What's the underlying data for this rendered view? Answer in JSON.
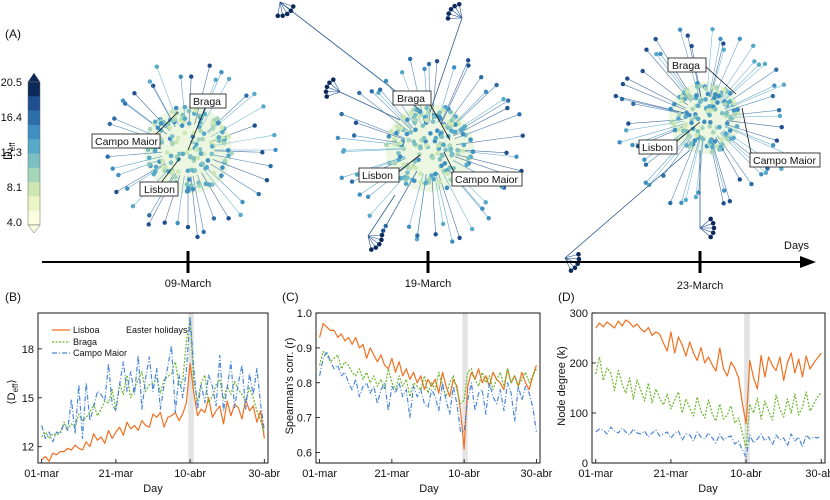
{
  "panel_labels": {
    "a": "(A)",
    "b": "(B)",
    "c": "(C)",
    "d": "(D)"
  },
  "colorbar": {
    "label_main": "D",
    "label_sub": "eff",
    "ticks": [
      "20.5",
      "16.4",
      "12.3",
      "8.1",
      "4.0"
    ],
    "colors": [
      "#0b2a5b",
      "#1f4f8f",
      "#2c6ea8",
      "#3f8fc2",
      "#56a9c9",
      "#7dc0c2",
      "#a6d5b9",
      "#cde7b3",
      "#ecf5c5",
      "#fbfde0"
    ]
  },
  "timeline": {
    "axis_label": "Days",
    "dates": [
      "09-March",
      "19-March",
      "23-March"
    ]
  },
  "networks": [
    {
      "date": "09-March",
      "labels": [
        "Braga",
        "Campo Maior",
        "Lisbon"
      ]
    },
    {
      "date": "19-March",
      "labels": [
        "Braga",
        "Lisbon",
        "Campo Maior"
      ]
    },
    {
      "date": "23-March",
      "labels": [
        "Braga",
        "Lisbon",
        "Campo Maior"
      ]
    }
  ],
  "series_colors": {
    "Lisboa": "#f07020",
    "Braga": "#6ab52a",
    "Campo Maior": "#4a86d8"
  },
  "chart_data": [
    {
      "type": "line",
      "panel": "(B)",
      "xlabel": "Day",
      "ylabel_main": "⟨D",
      "ylabel_sub": "eff",
      "ylabel_end": "⟩",
      "x_ticks": [
        "01-mar",
        "21-mar",
        "10-abr",
        "30-abr"
      ],
      "x_tick_days": [
        0,
        20,
        40,
        60
      ],
      "xlim": [
        -1,
        61
      ],
      "ylim": [
        11,
        20.2
      ],
      "y_ticks": [
        12,
        15,
        18
      ],
      "annotation": "Easter holidays",
      "shaded_day_range": [
        39.5,
        41
      ],
      "series": [
        {
          "name": "Lisboa",
          "values": [
            11.2,
            11.4,
            11.1,
            11.6,
            11.5,
            11.7,
            11.7,
            11.9,
            11.8,
            12.1,
            11.9,
            11.8,
            12.3,
            12.0,
            12.8,
            12.4,
            12.6,
            12.2,
            13.0,
            12.5,
            12.9,
            13.2,
            12.7,
            13.5,
            13.1,
            13.3,
            13.0,
            13.6,
            13.3,
            13.2,
            14.0,
            13.8,
            14.1,
            13.2,
            13.8,
            13.9,
            14.1,
            13.6,
            14.0,
            14.7,
            17.1,
            15.3,
            13.9,
            14.3,
            14.1,
            15.0,
            13.8,
            14.2,
            14.5,
            13.4,
            14.8,
            13.9,
            14.6,
            14.4,
            13.7,
            14.9,
            14.2,
            14.5,
            13.5,
            14.2,
            12.5
          ]
        },
        {
          "name": "Braga",
          "values": [
            12.6,
            12.9,
            12.5,
            12.8,
            12.7,
            12.9,
            13.5,
            13.1,
            13.4,
            13.2,
            14.0,
            13.6,
            13.8,
            14.1,
            14.6,
            13.9,
            14.3,
            14.8,
            14.7,
            15.5,
            14.3,
            15.9,
            15.2,
            16.4,
            15.0,
            15.6,
            16.1,
            16.6,
            15.4,
            15.8,
            15.9,
            16.2,
            15.3,
            16.1,
            16.3,
            16.5,
            17.2,
            15.8,
            16.0,
            18.5,
            19.8,
            16.0,
            14.8,
            15.9,
            16.4,
            14.7,
            15.1,
            15.8,
            16.1,
            14.9,
            15.7,
            15.2,
            16.0,
            15.5,
            15.2,
            14.8,
            15.6,
            15.0,
            14.2,
            13.6,
            12.8
          ]
        },
        {
          "name": "Campo Maior",
          "values": [
            13.3,
            12.5,
            12.9,
            12.3,
            12.9,
            12.8,
            13.4,
            13.0,
            14.9,
            12.8,
            15.8,
            12.5,
            15.9,
            13.6,
            14.4,
            15.4,
            15.2,
            14.8,
            17.1,
            14.6,
            14.2,
            15.8,
            17.2,
            15.4,
            16.6,
            15.2,
            17.6,
            14.3,
            16.2,
            17.5,
            15.4,
            16.8,
            14.3,
            15.8,
            16.9,
            18.2,
            14.1,
            16.4,
            15.0,
            16.7,
            20.0,
            16.8,
            14.3,
            15.8,
            14.7,
            16.4,
            15.7,
            14.5,
            17.6,
            14.2,
            15.6,
            17.2,
            14.4,
            15.9,
            17.0,
            14.3,
            16.5,
            15.2,
            16.8,
            14.6,
            13.0
          ]
        }
      ]
    },
    {
      "type": "line",
      "panel": "(C)",
      "xlabel": "Day",
      "ylabel": "Spearman's corr. (r)",
      "x_ticks": [
        "01-mar",
        "21-mar",
        "10-abr",
        "30-abr"
      ],
      "x_tick_days": [
        0,
        20,
        40,
        60
      ],
      "xlim": [
        -1,
        61
      ],
      "ylim": [
        0.57,
        1.0
      ],
      "y_ticks": [
        0.6,
        0.7,
        0.8,
        0.9,
        1.0
      ],
      "shaded_day_range": [
        39.5,
        41
      ],
      "series": [
        {
          "name": "Lisboa",
          "values": [
            0.93,
            0.97,
            0.96,
            0.95,
            0.95,
            0.93,
            0.94,
            0.92,
            0.93,
            0.91,
            0.93,
            0.9,
            0.91,
            0.87,
            0.9,
            0.88,
            0.86,
            0.88,
            0.85,
            0.84,
            0.87,
            0.83,
            0.86,
            0.82,
            0.84,
            0.81,
            0.83,
            0.8,
            0.82,
            0.78,
            0.81,
            0.79,
            0.81,
            0.77,
            0.83,
            0.79,
            0.76,
            0.81,
            0.79,
            0.72,
            0.61,
            0.79,
            0.83,
            0.81,
            0.84,
            0.8,
            0.82,
            0.79,
            0.83,
            0.81,
            0.8,
            0.78,
            0.84,
            0.8,
            0.82,
            0.79,
            0.83,
            0.8,
            0.78,
            0.82,
            0.85
          ]
        },
        {
          "name": "Braga",
          "values": [
            0.85,
            0.89,
            0.88,
            0.86,
            0.87,
            0.88,
            0.84,
            0.86,
            0.85,
            0.83,
            0.82,
            0.84,
            0.81,
            0.83,
            0.8,
            0.82,
            0.79,
            0.81,
            0.78,
            0.84,
            0.8,
            0.78,
            0.82,
            0.79,
            0.81,
            0.76,
            0.8,
            0.79,
            0.78,
            0.82,
            0.77,
            0.8,
            0.78,
            0.83,
            0.79,
            0.76,
            0.8,
            0.82,
            0.78,
            0.74,
            0.75,
            0.83,
            0.84,
            0.81,
            0.79,
            0.83,
            0.8,
            0.82,
            0.78,
            0.81,
            0.83,
            0.79,
            0.84,
            0.8,
            0.82,
            0.79,
            0.81,
            0.83,
            0.8,
            0.82,
            0.84
          ]
        },
        {
          "name": "Campo Maior",
          "values": [
            0.82,
            0.87,
            0.89,
            0.86,
            0.84,
            0.85,
            0.82,
            0.83,
            0.8,
            0.78,
            0.81,
            0.76,
            0.79,
            0.8,
            0.77,
            0.79,
            0.74,
            0.78,
            0.8,
            0.72,
            0.79,
            0.77,
            0.8,
            0.76,
            0.78,
            0.7,
            0.79,
            0.76,
            0.78,
            0.74,
            0.73,
            0.78,
            0.76,
            0.72,
            0.8,
            0.75,
            0.71,
            0.79,
            0.74,
            0.66,
            0.66,
            0.75,
            0.8,
            0.72,
            0.77,
            0.78,
            0.71,
            0.8,
            0.76,
            0.74,
            0.78,
            0.72,
            0.8,
            0.77,
            0.69,
            0.79,
            0.75,
            0.79,
            0.77,
            0.73,
            0.66
          ]
        }
      ]
    },
    {
      "type": "line",
      "panel": "(D)",
      "xlabel": "Day",
      "ylabel": "Node degree (k)",
      "x_ticks": [
        "01-mar",
        "21-mar",
        "10-abr",
        "30-abr"
      ],
      "x_tick_days": [
        0,
        20,
        40,
        60
      ],
      "xlim": [
        -1,
        61
      ],
      "ylim": [
        0,
        300
      ],
      "y_ticks": [
        0,
        100,
        200,
        300
      ],
      "shaded_day_range": [
        39.5,
        41
      ],
      "series": [
        {
          "name": "Lisboa",
          "values": [
            270,
            280,
            272,
            282,
            276,
            270,
            284,
            274,
            286,
            281,
            272,
            278,
            268,
            262,
            271,
            255,
            262,
            258,
            240,
            224,
            262,
            220,
            252,
            236,
            214,
            242,
            220,
            205,
            231,
            200,
            212,
            196,
            184,
            230,
            188,
            174,
            202,
            190,
            170,
            120,
            78,
            205,
            170,
            148,
            215,
            172,
            212,
            195,
            185,
            212,
            165,
            200,
            220,
            180,
            208,
            172,
            214,
            188,
            200,
            210,
            220
          ]
        },
        {
          "name": "Braga",
          "values": [
            178,
            212,
            165,
            190,
            180,
            145,
            185,
            158,
            140,
            170,
            128,
            166,
            145,
            124,
            160,
            120,
            148,
            130,
            116,
            138,
            108,
            126,
            142,
            100,
            128,
            110,
            94,
            132,
            104,
            90,
            126,
            98,
            84,
            118,
            88,
            96,
            114,
            80,
            90,
            60,
            30,
            118,
            100,
            130,
            88,
            124,
            104,
            86,
            136,
            108,
            92,
            128,
            100,
            138,
            96,
            112,
            142,
            104,
            118,
            132,
            140
          ]
        },
        {
          "name": "Campo Maior",
          "values": [
            62,
            68,
            66,
            58,
            72,
            64,
            60,
            70,
            62,
            56,
            68,
            60,
            58,
            64,
            52,
            60,
            66,
            54,
            58,
            62,
            50,
            60,
            64,
            46,
            58,
            56,
            44,
            62,
            52,
            48,
            60,
            50,
            40,
            58,
            46,
            52,
            54,
            38,
            44,
            26,
            12,
            56,
            40,
            48,
            58,
            44,
            52,
            36,
            56,
            46,
            50,
            34,
            58,
            44,
            52,
            32,
            56,
            48,
            52,
            50,
            54
          ]
        }
      ]
    }
  ]
}
